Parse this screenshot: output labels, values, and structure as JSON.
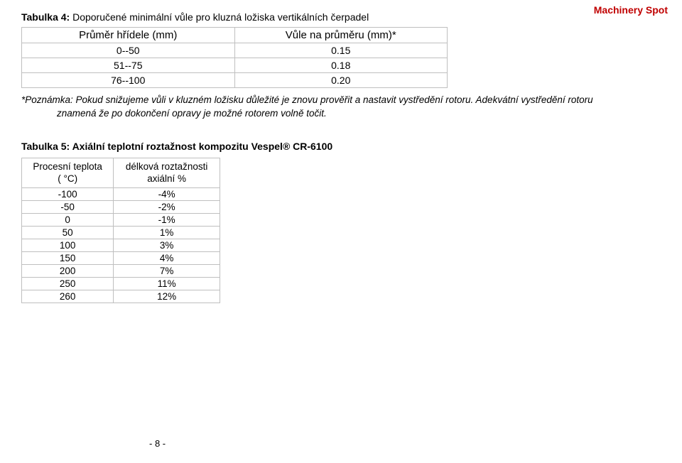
{
  "header": {
    "brand": "Machinery Spot"
  },
  "table4": {
    "caption_bold": "Tabulka 4:",
    "caption_rest": " Doporučené minimální vůle pro kluzná ložiska vertikálních čerpadel",
    "col1": "Průměr hřídele (mm)",
    "col2": "Vůle na průměru (mm)*",
    "rows": [
      {
        "a": "0--50",
        "b": "0.15"
      },
      {
        "a": "51--75",
        "b": "0.18"
      },
      {
        "a": "76--100",
        "b": "0.20"
      }
    ]
  },
  "note": {
    "line1": "*Poznámka: Pokud snižujeme vůli v kluzném ložisku důležité je znovu prověřit a nastavit vystředění rotoru. Adekvátní vystředění rotoru",
    "line2": "znamená že po dokončení opravy je možné rotorem volně točit."
  },
  "table5": {
    "caption": "Tabulka 5: Axiální teplotní roztažnost kompozitu Vespel® CR-6100",
    "col1a": "Procesní teplota",
    "col1b": "( °C)",
    "col2a": "délková roztažnosti",
    "col2b": "axiální %",
    "rows": [
      {
        "a": "-100",
        "b": "-4%"
      },
      {
        "a": "-50",
        "b": "-2%"
      },
      {
        "a": "0",
        "b": "-1%"
      },
      {
        "a": "50",
        "b": "1%"
      },
      {
        "a": "100",
        "b": "3%"
      },
      {
        "a": "150",
        "b": "4%"
      },
      {
        "a": "200",
        "b": "7%"
      },
      {
        "a": "250",
        "b": "11%"
      },
      {
        "a": "260",
        "b": "12%"
      }
    ]
  },
  "footer": {
    "pagenum": "- 8 -"
  }
}
